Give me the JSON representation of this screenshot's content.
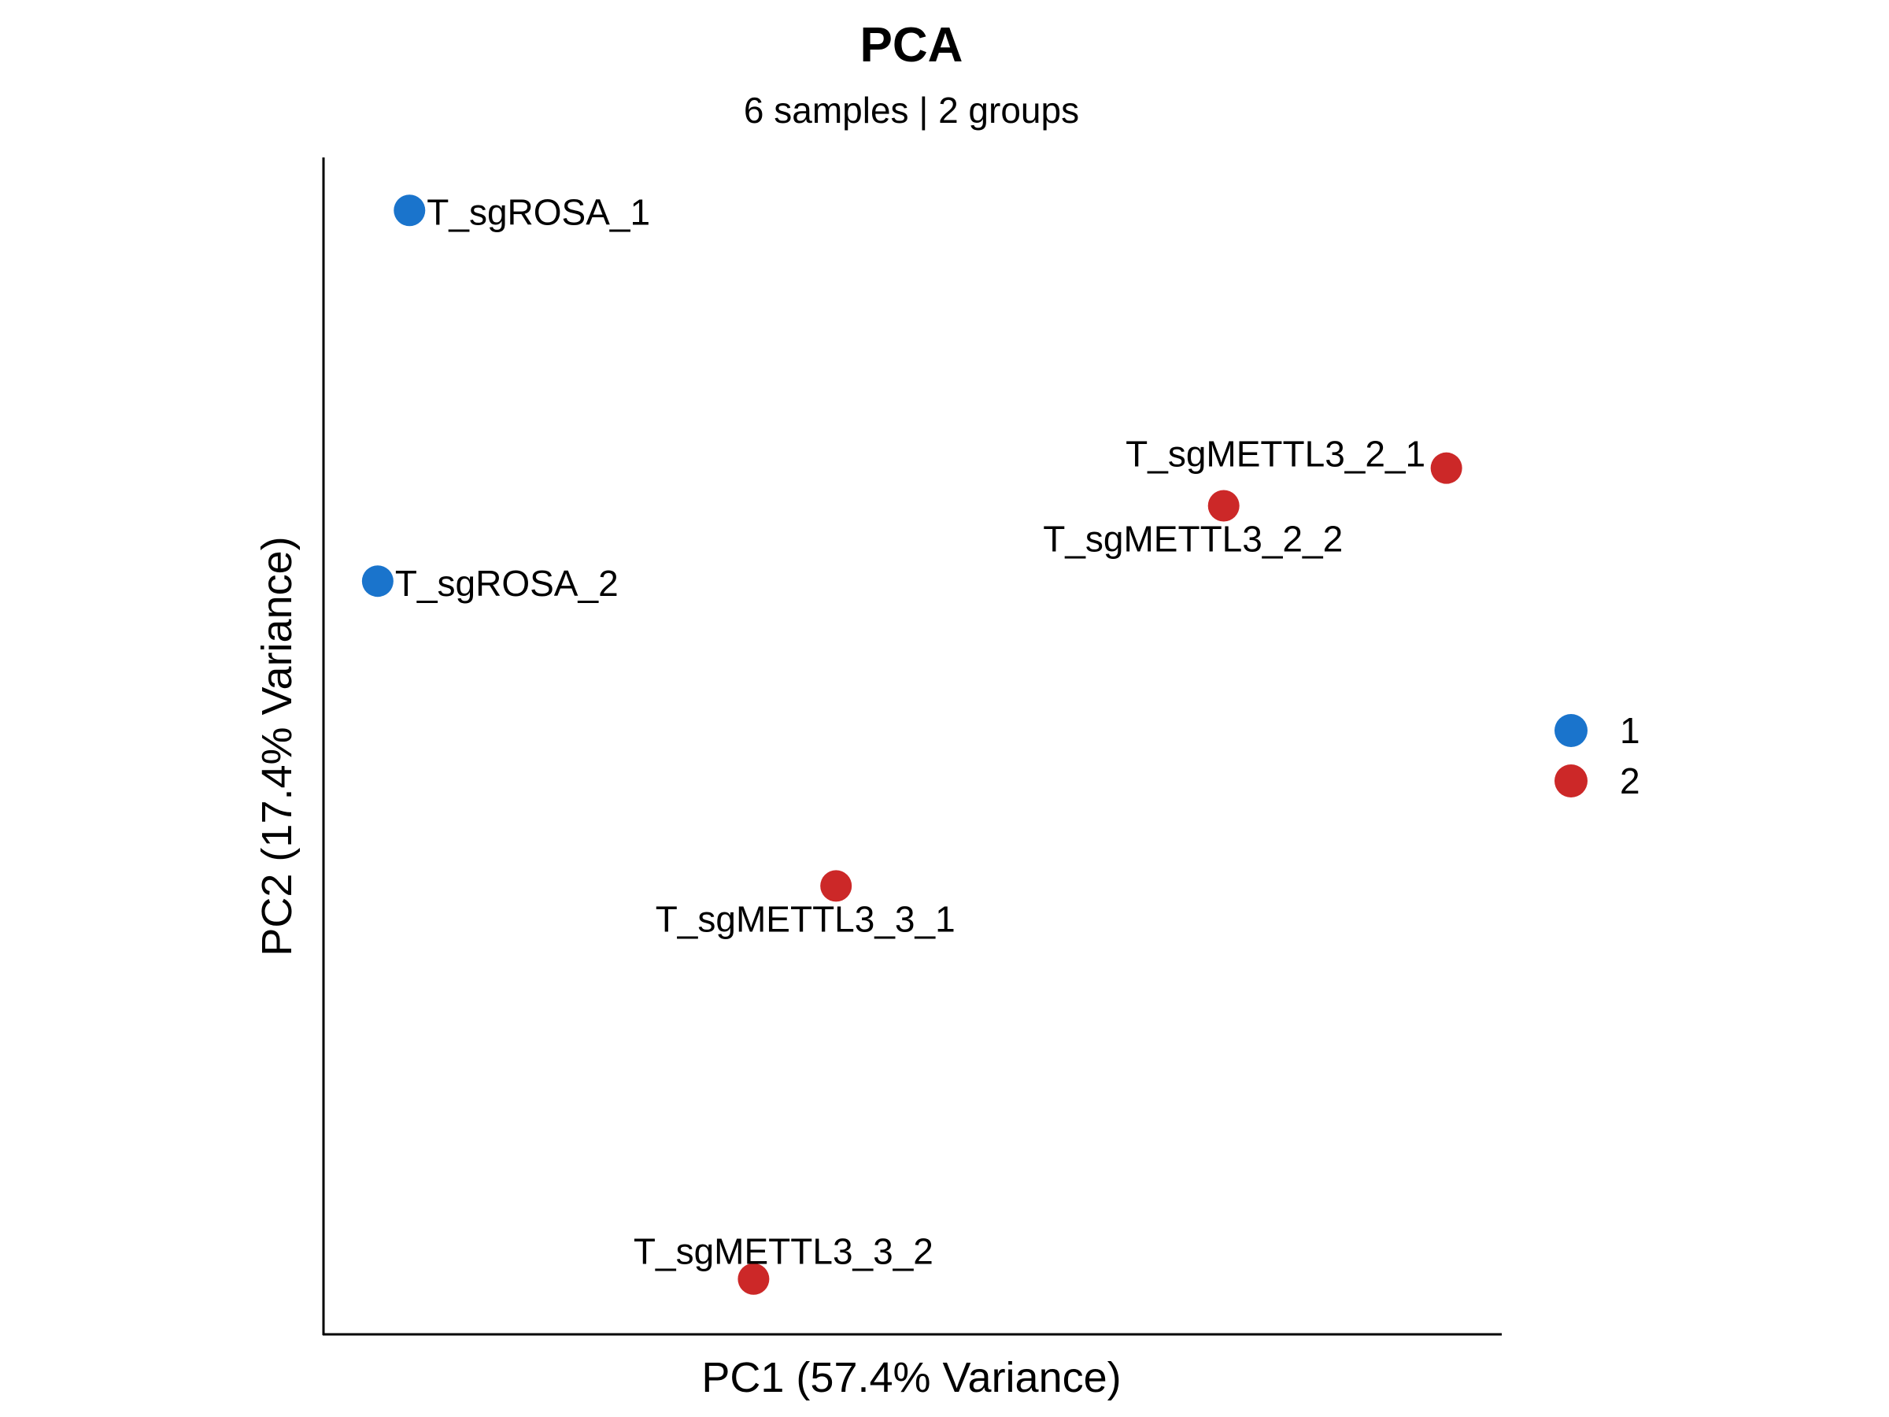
{
  "chart_data": {
    "type": "scatter",
    "title": "PCA",
    "subtitle": "6 samples | 2 groups",
    "xlabel": "PC1 (57.4% Variance)",
    "ylabel": "PC2 (17.4% Variance)",
    "xlim": [
      0,
      100
    ],
    "ylim": [
      0,
      100
    ],
    "axis_units_note": "relative PC scores; no tick labels shown",
    "grid": false,
    "legend": {
      "placement": "right",
      "entries": [
        {
          "label": "1",
          "color": "#1a74cc"
        },
        {
          "label": "2",
          "color": "#cc2828"
        }
      ]
    },
    "points": [
      {
        "label": "T_sgROSA_1",
        "group": "1",
        "x": 7.3,
        "y": 95.5
      },
      {
        "label": "T_sgROSA_2",
        "group": "1",
        "x": 4.6,
        "y": 64.0
      },
      {
        "label": "T_sgMETTL3_2_1",
        "group": "2",
        "x": 95.3,
        "y": 73.6
      },
      {
        "label": "T_sgMETTL3_2_2",
        "group": "2",
        "x": 76.4,
        "y": 70.4
      },
      {
        "label": "T_sgMETTL3_3_1",
        "group": "2",
        "x": 43.5,
        "y": 38.1
      },
      {
        "label": "T_sgMETTL3_3_2",
        "group": "2",
        "x": 36.5,
        "y": 4.7
      }
    ]
  }
}
